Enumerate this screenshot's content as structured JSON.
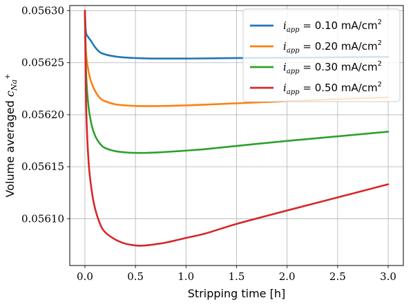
{
  "chart_data": {
    "type": "line",
    "xlabel": "Stripping time [h]",
    "ylabel_prefix": "Volume averaged ",
    "ylabel_symbol": "c",
    "ylabel_subscript": "Na",
    "ylabel_superscript": "+",
    "xlim": [
      -0.15,
      3.15
    ],
    "ylim": [
      0.056055,
      0.056305
    ],
    "xticks": [
      0.0,
      0.5,
      1.0,
      1.5,
      2.0,
      2.5,
      3.0
    ],
    "xtick_labels": [
      "0.0",
      "0.5",
      "1.0",
      "1.5",
      "2.0",
      "2.5",
      "3.0"
    ],
    "yticks": [
      0.0561,
      0.05615,
      0.0562,
      0.05625,
      0.0563
    ],
    "ytick_labels": [
      "0.05610",
      "0.05615",
      "0.05620",
      "0.05625",
      "0.05630"
    ],
    "grid": true,
    "legend_position": "top-right",
    "legend_var": "i",
    "legend_sub": "app",
    "series": [
      {
        "name": "0.10 mA/cm",
        "name_sup": "2",
        "color": "#1f77b4",
        "x": [
          0.0,
          0.01,
          0.03,
          0.06,
          0.1,
          0.15,
          0.2,
          0.3,
          0.4,
          0.5,
          0.6,
          0.7,
          0.8,
          1.0,
          1.2,
          1.5,
          2.0,
          2.5,
          3.0
        ],
        "y": [
          0.0563,
          0.05628,
          0.056275,
          0.056271,
          0.056265,
          0.05626,
          0.056258,
          0.056256,
          0.056255,
          0.0562545,
          0.0562542,
          0.056254,
          0.056254,
          0.056254,
          0.0562542,
          0.0562545,
          0.0562548,
          0.0562552,
          0.0562557
        ]
      },
      {
        "name": "0.20 mA/cm",
        "name_sup": "2",
        "color": "#ff7f0e",
        "x": [
          0.0,
          0.01,
          0.03,
          0.06,
          0.1,
          0.15,
          0.2,
          0.3,
          0.4,
          0.5,
          0.6,
          0.7,
          0.8,
          1.0,
          1.2,
          1.5,
          2.0,
          2.5,
          3.0
        ],
        "y": [
          0.0563,
          0.056262,
          0.056245,
          0.056232,
          0.056223,
          0.056216,
          0.056213,
          0.05621,
          0.056209,
          0.0562085,
          0.0562083,
          0.0562083,
          0.0562085,
          0.056209,
          0.0562097,
          0.056211,
          0.056213,
          0.056215,
          0.0562167
        ]
      },
      {
        "name": "0.30 mA/cm",
        "name_sup": "2",
        "color": "#2ca02c",
        "x": [
          0.0,
          0.01,
          0.03,
          0.06,
          0.1,
          0.15,
          0.2,
          0.3,
          0.4,
          0.5,
          0.6,
          0.7,
          0.8,
          1.0,
          1.2,
          1.5,
          2.0,
          2.5,
          3.0
        ],
        "y": [
          0.0563,
          0.056245,
          0.056213,
          0.056193,
          0.05618,
          0.056172,
          0.056168,
          0.056165,
          0.0561638,
          0.0561633,
          0.0561633,
          0.0561637,
          0.0561642,
          0.0561655,
          0.056167,
          0.05617,
          0.0561748,
          0.0561792,
          0.0561837
        ]
      },
      {
        "name": "0.50 mA/cm",
        "name_sup": "2",
        "color": "#d62728",
        "x": [
          0.0,
          0.01,
          0.02,
          0.04,
          0.07,
          0.1,
          0.15,
          0.2,
          0.3,
          0.4,
          0.5,
          0.55,
          0.6,
          0.7,
          0.8,
          1.0,
          1.2,
          1.5,
          2.0,
          2.5,
          3.0
        ],
        "y": [
          0.0563,
          0.05622,
          0.056185,
          0.05615,
          0.056125,
          0.05611,
          0.056095,
          0.056087,
          0.05608,
          0.056076,
          0.0560743,
          0.0560741,
          0.0560743,
          0.0560755,
          0.056077,
          0.0560815,
          0.056086,
          0.056095,
          0.0561079,
          0.0561205,
          0.0561331
        ]
      }
    ]
  }
}
